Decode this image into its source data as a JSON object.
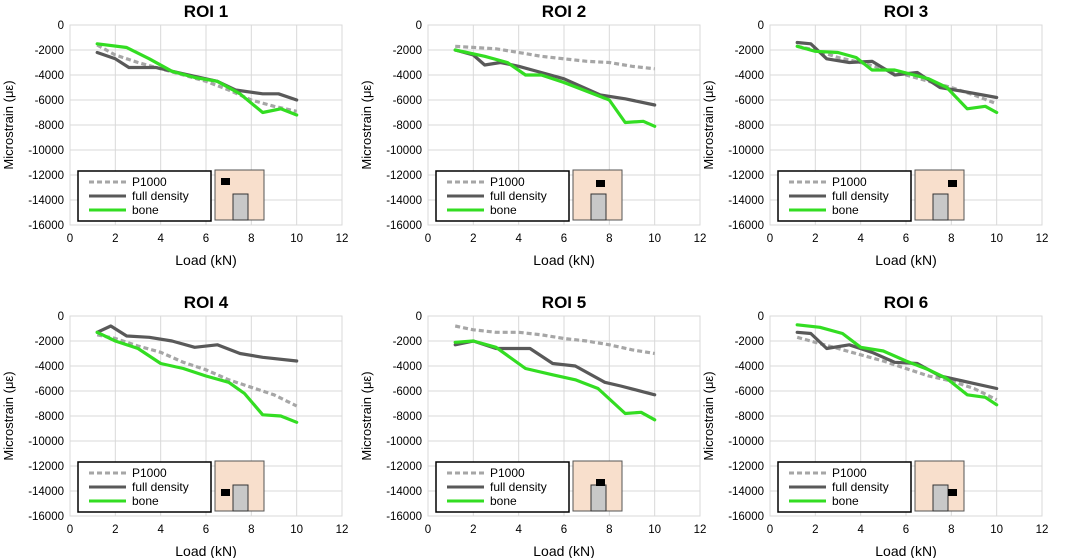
{
  "figure": {
    "x_label": "Load (kN)",
    "y_label": "Microstrain (με)",
    "legend_labels": [
      "P1000",
      "full density",
      "bone"
    ]
  },
  "colors": {
    "p1000": "#a6a6a6",
    "full_density": "#595959",
    "bone": "#33dd22",
    "grid": "#d9d9d9",
    "inset_bg": "#f8dfcc",
    "inset_implant": "#c8c8c8",
    "roi_marker": "#000000"
  },
  "chart_data": [
    {
      "type": "line",
      "title": "ROI 1",
      "xlabel": "Load (kN)",
      "ylabel": "Microstrain (με)",
      "xlim": [
        0,
        12
      ],
      "ylim": [
        -16000,
        0
      ],
      "xticks": [
        0,
        2,
        4,
        6,
        8,
        10,
        12
      ],
      "yticks": [
        0,
        -2000,
        -4000,
        -6000,
        -8000,
        -10000,
        -12000,
        -14000,
        -16000
      ],
      "grid": true,
      "legend_position": "bottom-left",
      "roi_marker": "top-left",
      "series": [
        {
          "name": "P1000",
          "x": [
            1.2,
            2,
            3,
            4,
            5,
            6,
            7,
            8,
            9,
            10
          ],
          "y": [
            -1600,
            -2400,
            -3000,
            -3500,
            -4000,
            -4500,
            -5200,
            -6000,
            -6500,
            -6900
          ]
        },
        {
          "name": "full density",
          "x": [
            1.2,
            2,
            2.6,
            3.8,
            5,
            6.5,
            7.3,
            8.5,
            9.2,
            10
          ],
          "y": [
            -2200,
            -2700,
            -3400,
            -3400,
            -3900,
            -4500,
            -5200,
            -5500,
            -5500,
            -6000
          ]
        },
        {
          "name": "bone",
          "x": [
            1.2,
            2.5,
            3.5,
            4.5,
            5.5,
            6.5,
            7.5,
            8.5,
            9.3,
            10
          ],
          "y": [
            -1500,
            -1800,
            -2700,
            -3700,
            -4200,
            -4500,
            -5500,
            -7000,
            -6700,
            -7200
          ]
        }
      ]
    },
    {
      "type": "line",
      "title": "ROI 2",
      "xlabel": "Load (kN)",
      "ylabel": "Microstrain (με)",
      "xlim": [
        0,
        12
      ],
      "ylim": [
        -16000,
        0
      ],
      "xticks": [
        0,
        2,
        4,
        6,
        8,
        10,
        12
      ],
      "yticks": [
        0,
        -2000,
        -4000,
        -6000,
        -8000,
        -10000,
        -12000,
        -14000,
        -16000
      ],
      "grid": true,
      "legend_position": "bottom-left",
      "roi_marker": "top-middle",
      "series": [
        {
          "name": "P1000",
          "x": [
            1.2,
            3,
            4,
            5,
            6,
            7,
            8,
            9,
            10
          ],
          "y": [
            -1700,
            -1900,
            -2200,
            -2500,
            -2700,
            -2900,
            -3000,
            -3300,
            -3500
          ]
        },
        {
          "name": "full density",
          "x": [
            1.2,
            2,
            2.5,
            3.2,
            4,
            5,
            6,
            7.6,
            8.7,
            10
          ],
          "y": [
            -2000,
            -2400,
            -3200,
            -3000,
            -3300,
            -3800,
            -4300,
            -5600,
            -5900,
            -6400
          ]
        },
        {
          "name": "bone",
          "x": [
            1.2,
            2.5,
            3.5,
            4.3,
            5,
            6,
            7,
            8,
            8.7,
            9.5,
            10
          ],
          "y": [
            -2000,
            -2500,
            -3000,
            -4000,
            -4000,
            -4600,
            -5300,
            -6000,
            -7800,
            -7700,
            -8100
          ]
        }
      ]
    },
    {
      "type": "line",
      "title": "ROI 3",
      "xlabel": "Load (kN)",
      "ylabel": "Microstrain (με)",
      "xlim": [
        0,
        12
      ],
      "ylim": [
        -16000,
        0
      ],
      "xticks": [
        0,
        2,
        4,
        6,
        8,
        10,
        12
      ],
      "yticks": [
        0,
        -2000,
        -4000,
        -6000,
        -8000,
        -10000,
        -12000,
        -14000,
        -16000
      ],
      "grid": true,
      "legend_position": "bottom-left",
      "roi_marker": "top-right",
      "series": [
        {
          "name": "P1000",
          "x": [
            1.2,
            2,
            3,
            4,
            5,
            6,
            7,
            8,
            9,
            10
          ],
          "y": [
            -1700,
            -2000,
            -2600,
            -3000,
            -3500,
            -4000,
            -4500,
            -5000,
            -5600,
            -6300
          ]
        },
        {
          "name": "full density",
          "x": [
            1.2,
            1.8,
            2.5,
            3.5,
            4.5,
            5.5,
            6.5,
            7.5,
            8.5,
            10
          ],
          "y": [
            -1400,
            -1500,
            -2700,
            -3000,
            -2900,
            -4000,
            -3800,
            -5000,
            -5300,
            -5800
          ]
        },
        {
          "name": "bone",
          "x": [
            1.2,
            2,
            3,
            3.8,
            4.5,
            5.5,
            7,
            7.8,
            8.7,
            9.5,
            10
          ],
          "y": [
            -1700,
            -2100,
            -2200,
            -2600,
            -3600,
            -3600,
            -4300,
            -5000,
            -6700,
            -6500,
            -7000
          ]
        }
      ]
    },
    {
      "type": "line",
      "title": "ROI 4",
      "xlabel": "Load (kN)",
      "ylabel": "Microstrain (με)",
      "xlim": [
        0,
        12
      ],
      "ylim": [
        -16000,
        0
      ],
      "xticks": [
        0,
        2,
        4,
        6,
        8,
        10,
        12
      ],
      "yticks": [
        0,
        -2000,
        -4000,
        -6000,
        -8000,
        -10000,
        -12000,
        -14000,
        -16000
      ],
      "grid": true,
      "legend_position": "bottom-left",
      "roi_marker": "bottom-left",
      "series": [
        {
          "name": "P1000",
          "x": [
            1.2,
            2,
            3,
            4,
            5,
            6,
            7,
            8,
            9,
            10
          ],
          "y": [
            -1500,
            -1800,
            -2400,
            -2900,
            -3700,
            -4300,
            -5100,
            -5700,
            -6300,
            -7200
          ]
        },
        {
          "name": "full density",
          "x": [
            1.2,
            1.8,
            2.5,
            3.5,
            4.5,
            5.5,
            6.5,
            7.5,
            8.5,
            10
          ],
          "y": [
            -1300,
            -800,
            -1600,
            -1700,
            -2000,
            -2500,
            -2300,
            -3000,
            -3300,
            -3600
          ]
        },
        {
          "name": "bone",
          "x": [
            1.2,
            2,
            3,
            4,
            5,
            6,
            7,
            7.7,
            8.5,
            9.3,
            10
          ],
          "y": [
            -1300,
            -2000,
            -2600,
            -3800,
            -4200,
            -4800,
            -5300,
            -6200,
            -7900,
            -8000,
            -8500
          ]
        }
      ]
    },
    {
      "type": "line",
      "title": "ROI 5",
      "xlabel": "Load (kN)",
      "ylabel": "Microstrain (με)",
      "xlim": [
        0,
        12
      ],
      "ylim": [
        -16000,
        0
      ],
      "xticks": [
        0,
        2,
        4,
        6,
        8,
        10,
        12
      ],
      "yticks": [
        0,
        -2000,
        -4000,
        -6000,
        -8000,
        -10000,
        -12000,
        -14000,
        -16000
      ],
      "grid": true,
      "legend_position": "bottom-left",
      "roi_marker": "middle",
      "series": [
        {
          "name": "P1000",
          "x": [
            1.2,
            2,
            3,
            4,
            5,
            6,
            7,
            8,
            9,
            10
          ],
          "y": [
            -800,
            -1100,
            -1300,
            -1300,
            -1500,
            -1800,
            -2000,
            -2300,
            -2700,
            -3000
          ]
        },
        {
          "name": "full density",
          "x": [
            1.2,
            2,
            3,
            4.5,
            5.5,
            6.5,
            7.8,
            8.5,
            10
          ],
          "y": [
            -2300,
            -2000,
            -2600,
            -2600,
            -3800,
            -4000,
            -5300,
            -5600,
            -6300
          ]
        },
        {
          "name": "bone",
          "x": [
            1.2,
            2,
            3,
            4.3,
            5.5,
            6.5,
            7.5,
            8.7,
            9.4,
            10
          ],
          "y": [
            -2100,
            -2000,
            -2500,
            -4200,
            -4700,
            -5100,
            -5800,
            -7800,
            -7700,
            -8300
          ]
        }
      ]
    },
    {
      "type": "line",
      "title": "ROI 6",
      "xlabel": "Load (kN)",
      "ylabel": "Microstrain (με)",
      "xlim": [
        0,
        12
      ],
      "ylim": [
        -16000,
        0
      ],
      "xticks": [
        0,
        2,
        4,
        6,
        8,
        10,
        12
      ],
      "yticks": [
        0,
        -2000,
        -4000,
        -6000,
        -8000,
        -10000,
        -12000,
        -14000,
        -16000
      ],
      "grid": true,
      "legend_position": "bottom-left",
      "roi_marker": "bottom-right",
      "series": [
        {
          "name": "P1000",
          "x": [
            1.2,
            2,
            3,
            4,
            5,
            6,
            7,
            8,
            9,
            10
          ],
          "y": [
            -1700,
            -2100,
            -2600,
            -3100,
            -3600,
            -4200,
            -4800,
            -5200,
            -5800,
            -6700
          ]
        },
        {
          "name": "full density",
          "x": [
            1.2,
            1.8,
            2.5,
            3.5,
            4.5,
            5.5,
            6.5,
            7.5,
            8.5,
            10
          ],
          "y": [
            -1300,
            -1400,
            -2600,
            -2300,
            -2900,
            -3700,
            -3800,
            -4800,
            -5200,
            -5800
          ]
        },
        {
          "name": "bone",
          "x": [
            1.2,
            2.2,
            3.2,
            4,
            5,
            6,
            7,
            7.8,
            8.7,
            9.5,
            10
          ],
          "y": [
            -700,
            -900,
            -1400,
            -2500,
            -2800,
            -3600,
            -4300,
            -5000,
            -6300,
            -6500,
            -7100
          ]
        }
      ]
    }
  ]
}
